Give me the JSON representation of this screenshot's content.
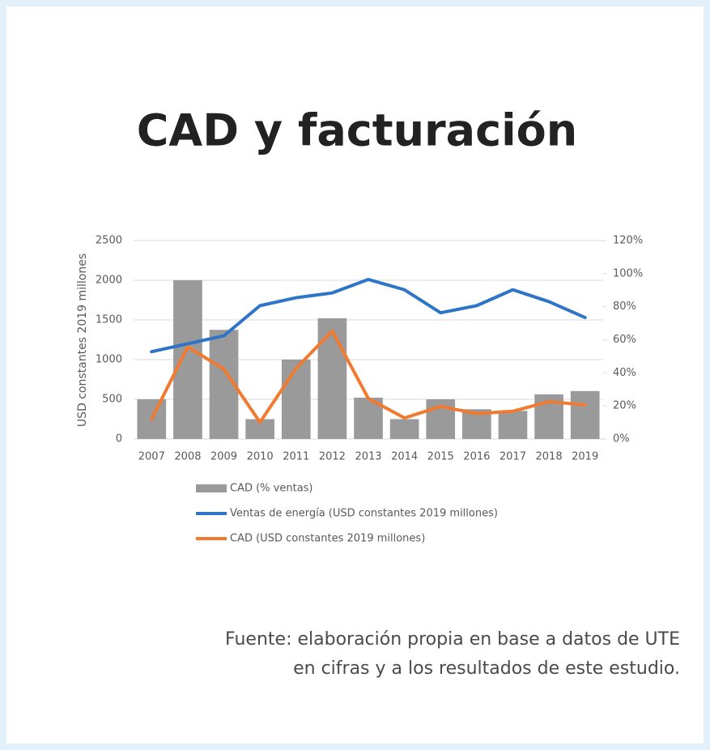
{
  "chart_data": {
    "type": "combo",
    "title": "CAD y facturación",
    "ylabel": "USD constantes 2019 millones",
    "categories": [
      "2007",
      "2008",
      "2009",
      "2010",
      "2011",
      "2012",
      "2013",
      "2014",
      "2015",
      "2016",
      "2017",
      "2018",
      "2019"
    ],
    "series": [
      {
        "name": "CAD (% ventas)",
        "type": "bar",
        "axis": "y2",
        "color": "#9a9a9a",
        "values": [
          24,
          96,
          66,
          12,
          48,
          73,
          25,
          12,
          24,
          18,
          17,
          27,
          29
        ]
      },
      {
        "name": "Ventas de energía (USD constantes 2019 millones)",
        "type": "line",
        "color": "#2e75c8",
        "values": [
          1100,
          1200,
          1300,
          1680,
          1780,
          1840,
          2010,
          1880,
          1590,
          1680,
          1880,
          1730,
          1530
        ]
      },
      {
        "name": "CAD (USD constantes 2019 millones)",
        "type": "line",
        "color": "#f07a30",
        "values": [
          250,
          1160,
          880,
          210,
          890,
          1360,
          510,
          265,
          410,
          320,
          350,
          470,
          430
        ]
      }
    ],
    "ylim": [
      0,
      2500
    ],
    "yticks": [
      0,
      500,
      1000,
      1500,
      2000,
      2500
    ],
    "y2lim": [
      0,
      120
    ],
    "y2ticks": [
      {
        "value": 0,
        "label": "0%"
      },
      {
        "value": 20,
        "label": "20%"
      },
      {
        "value": 40,
        "label": "40%"
      },
      {
        "value": 60,
        "label": "60%"
      },
      {
        "value": 80,
        "label": "80%"
      },
      {
        "value": 100,
        "label": "100%"
      },
      {
        "value": 120,
        "label": "120%"
      }
    ],
    "grid": true,
    "legend": "bottom",
    "source": [
      "Fuente: elaboración propia en base a datos de UTE",
      "en cifras y a los resultados de este estudio."
    ]
  }
}
